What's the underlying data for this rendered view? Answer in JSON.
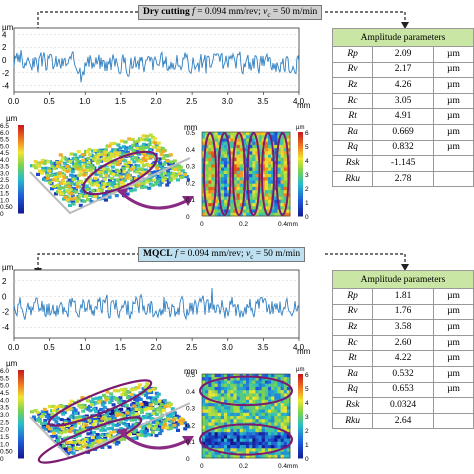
{
  "panels": [
    {
      "label": {
        "method": "Dry cutting",
        "feed_text": "f",
        "feed_value": " = 0.094 mm/rev; ",
        "speed_text": "v",
        "speed_sub": "c",
        "speed_value": " = 50 m/min"
      },
      "profile": {
        "y_unit": "µm",
        "x_unit": "mm",
        "x_ticks": [
          "0.0",
          "0.5",
          "1.0",
          "1.5",
          "2.0",
          "2.5",
          "3.0",
          "3.5",
          "4.0"
        ],
        "y_ticks": [
          "4",
          "2",
          "0",
          "-2",
          "-4"
        ],
        "seed": 3
      },
      "scale3d": {
        "unit": "µm",
        "ticks": [
          "6.5",
          "6.0",
          "5.5",
          "5.0",
          "4.5",
          "4.0",
          "3.5",
          "3.0",
          "2.5",
          "2.0",
          "1.5",
          "1.0",
          "0.50",
          "0"
        ]
      },
      "map2d": {
        "unit": "mm",
        "y_ticks": [
          "0.5",
          "0.4",
          "0.3",
          "0.2",
          "0.1",
          "0"
        ],
        "x_ticks": [
          "0",
          "0.2",
          "0.4mm"
        ],
        "bar_ticks": [
          "6",
          "5",
          "4",
          "3",
          "2",
          "1",
          "0"
        ],
        "bar_unit": "µm"
      },
      "table": {
        "header": "Amplitude parameters",
        "rows": [
          {
            "name": "Rp",
            "value": "2.09",
            "unit": "µm"
          },
          {
            "name": "Rv",
            "value": "2.17",
            "unit": "µm"
          },
          {
            "name": "Rz",
            "value": "4.26",
            "unit": "µm"
          },
          {
            "name": "Rc",
            "value": "3.05",
            "unit": "µm"
          },
          {
            "name": "Rt",
            "value": "4.91",
            "unit": "µm"
          },
          {
            "name": "Ra",
            "value": "0.669",
            "unit": "µm"
          },
          {
            "name": "Rq",
            "value": "0.832",
            "unit": "µm"
          },
          {
            "name": "Rsk",
            "value": "-1.145",
            "unit": ""
          },
          {
            "name": "Rku",
            "value": "2.78",
            "unit": ""
          }
        ]
      }
    },
    {
      "label": {
        "method": "MQCL",
        "feed_text": "f",
        "feed_value": " = 0.094 mm/rev; ",
        "speed_text": "v",
        "speed_sub": "c",
        "speed_value": " = 50 m/min"
      },
      "profile": {
        "y_unit": "µm",
        "x_unit": "mm",
        "x_ticks": [
          "0.0",
          "0.5",
          "1.0",
          "1.5",
          "2.0",
          "2.5",
          "3.0",
          "3.5",
          "4.0"
        ],
        "y_ticks": [
          "2",
          "0",
          "-2",
          "-4"
        ],
        "seed": 11
      },
      "scale3d": {
        "unit": "µm",
        "ticks": [
          "6.0",
          "5.5",
          "5.0",
          "4.5",
          "4.0",
          "3.5",
          "3.0",
          "2.5",
          "2.0",
          "1.5",
          "1.0",
          "0.50",
          "0"
        ]
      },
      "map2d": {
        "unit": "mm",
        "y_ticks": [
          "0.5",
          "0.4",
          "0.3",
          "0.2",
          "0.1",
          "0"
        ],
        "x_ticks": [
          "0",
          "0.2",
          "0.4mm"
        ],
        "bar_ticks": [
          "6",
          "5",
          "4",
          "3",
          "2",
          "1",
          "0"
        ],
        "bar_unit": "µm"
      },
      "table": {
        "header": "Amplitude parameters",
        "rows": [
          {
            "name": "Rp",
            "value": "1.81",
            "unit": "µm"
          },
          {
            "name": "Rv",
            "value": "1.76",
            "unit": "µm"
          },
          {
            "name": "Rz",
            "value": "3.58",
            "unit": "µm"
          },
          {
            "name": "Rc",
            "value": "2.60",
            "unit": "µm"
          },
          {
            "name": "Rt",
            "value": "4.22",
            "unit": "µm"
          },
          {
            "name": "Ra",
            "value": "0.532",
            "unit": "µm"
          },
          {
            "name": "Rq",
            "value": "0.653",
            "unit": "µm"
          },
          {
            "name": "Rsk",
            "value": "0.0324",
            "unit": ""
          },
          {
            "name": "Rku",
            "value": "2.64",
            "unit": ""
          }
        ]
      }
    }
  ],
  "colors": {
    "profile_line": "#2f7fc1",
    "ellipse": "#7b1a6e",
    "arrow": "#8a2a82",
    "table_header": "#c9e6a4",
    "dry_label": "#cfcfcf",
    "mqcl_label": "#bfe0f0"
  }
}
